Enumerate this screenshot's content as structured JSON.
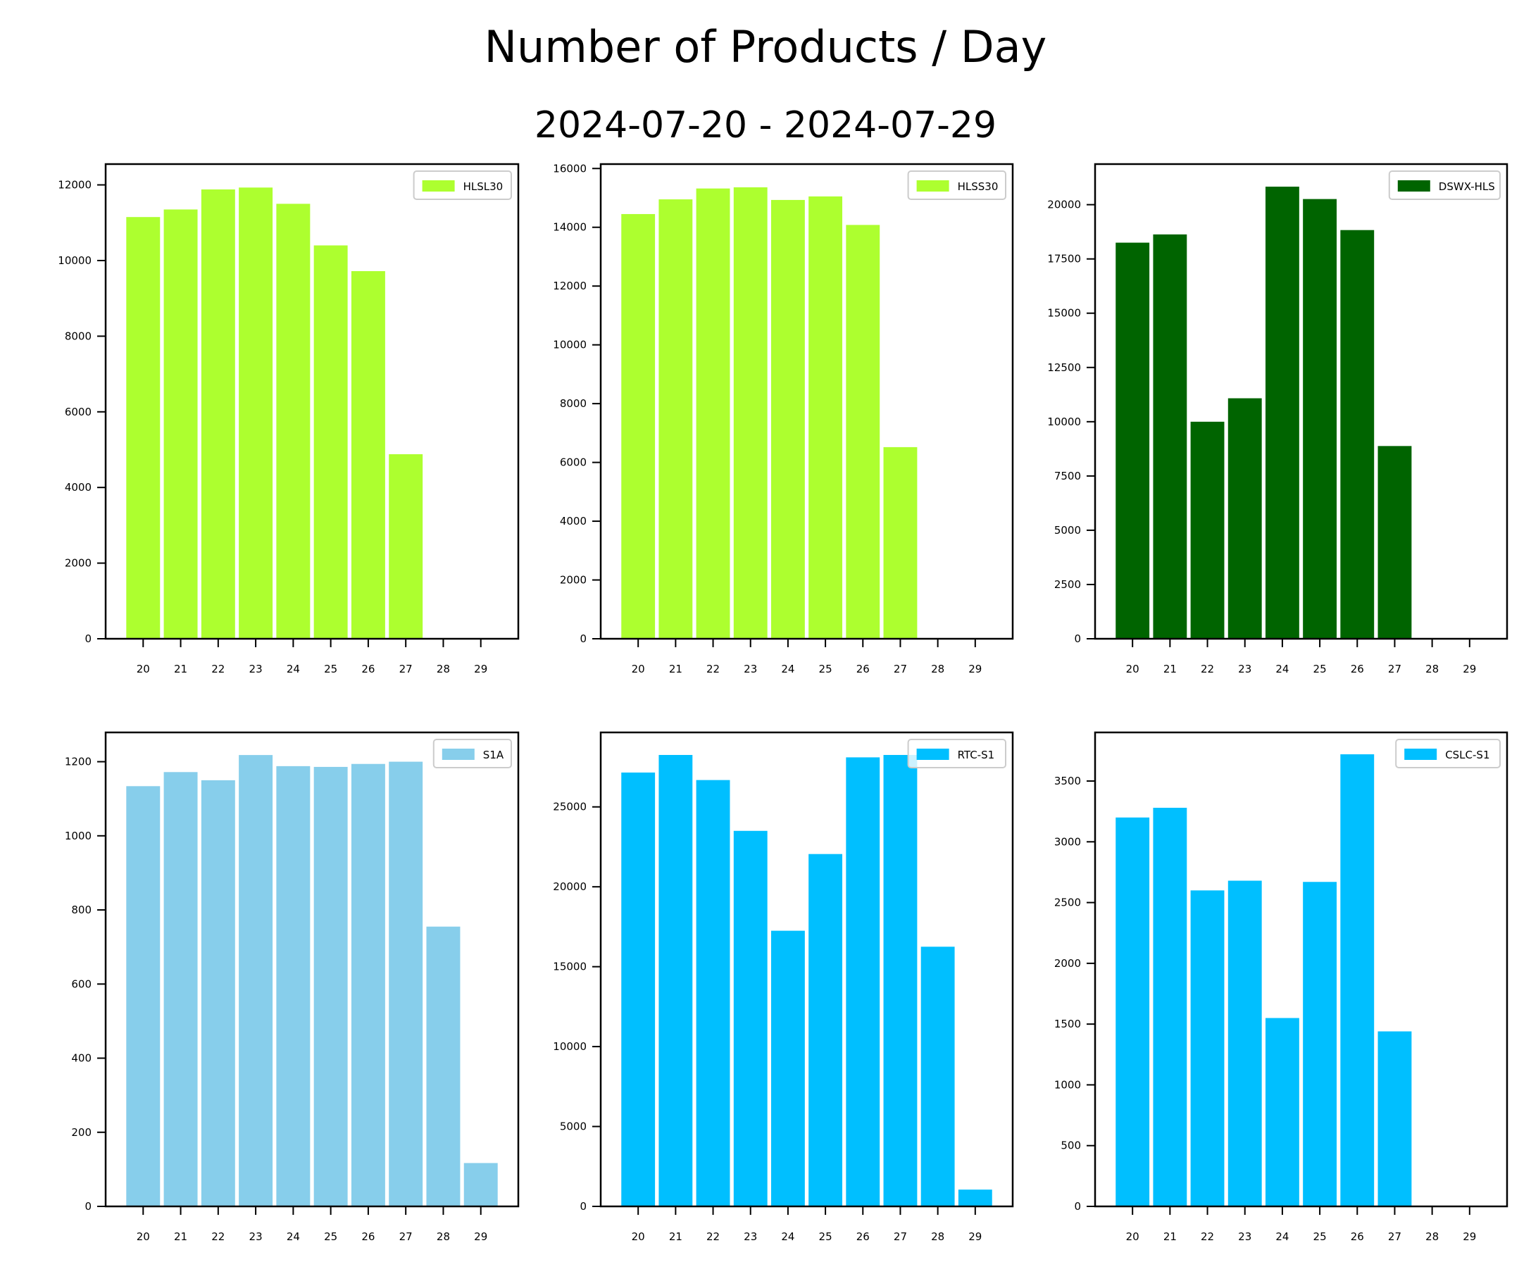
{
  "figure": {
    "title": "Number of Products / Day",
    "subtitle": "2024-07-20 - 2024-07-29"
  },
  "chart_data": [
    {
      "type": "bar",
      "series": [
        {
          "name": "HLSL30",
          "values": [
            11150,
            11350,
            11880,
            11930,
            11500,
            10400,
            9720,
            4880,
            0,
            0
          ]
        }
      ],
      "categories": [
        "20",
        "21",
        "22",
        "23",
        "24",
        "25",
        "26",
        "27",
        "28",
        "29"
      ],
      "color": "#adff2f",
      "ylim": [
        0,
        12550
      ],
      "yticks": [
        0,
        2000,
        4000,
        6000,
        8000,
        10000,
        12000
      ],
      "legend_position": "upper-right"
    },
    {
      "type": "bar",
      "series": [
        {
          "name": "HLSS30",
          "values": [
            14450,
            14950,
            15320,
            15360,
            14930,
            15050,
            14080,
            6520,
            0,
            0
          ]
        }
      ],
      "categories": [
        "20",
        "21",
        "22",
        "23",
        "24",
        "25",
        "26",
        "27",
        "28",
        "29"
      ],
      "color": "#adff2f",
      "ylim": [
        0,
        16150
      ],
      "yticks": [
        0,
        2000,
        4000,
        6000,
        8000,
        10000,
        12000,
        14000,
        16000
      ],
      "legend_position": "upper-right"
    },
    {
      "type": "bar",
      "series": [
        {
          "name": "DSWX-HLS",
          "values": [
            18250,
            18630,
            10000,
            11080,
            20830,
            20260,
            18830,
            8880,
            0,
            0
          ]
        }
      ],
      "categories": [
        "20",
        "21",
        "22",
        "23",
        "24",
        "25",
        "26",
        "27",
        "28",
        "29"
      ],
      "color": "#006400",
      "ylim": [
        0,
        21870
      ],
      "yticks": [
        0,
        2500,
        5000,
        7500,
        10000,
        12500,
        15000,
        17500,
        20000
      ],
      "legend_position": "upper-right"
    },
    {
      "type": "bar",
      "series": [
        {
          "name": "S1A",
          "values": [
            1134,
            1172,
            1150,
            1218,
            1188,
            1186,
            1194,
            1200,
            755,
            117
          ]
        }
      ],
      "categories": [
        "20",
        "21",
        "22",
        "23",
        "24",
        "25",
        "26",
        "27",
        "28",
        "29"
      ],
      "color": "#87ceeb",
      "ylim": [
        0,
        1279
      ],
      "yticks": [
        0,
        200,
        400,
        600,
        800,
        1000,
        1200
      ],
      "legend_position": "upper-right"
    },
    {
      "type": "bar",
      "series": [
        {
          "name": "RTC-S1",
          "values": [
            27150,
            28250,
            26680,
            23500,
            17250,
            22050,
            28100,
            28250,
            16250,
            1050
          ]
        }
      ],
      "categories": [
        "20",
        "21",
        "22",
        "23",
        "24",
        "25",
        "26",
        "27",
        "28",
        "29"
      ],
      "color": "#00bfff",
      "ylim": [
        0,
        29660
      ],
      "yticks": [
        0,
        5000,
        10000,
        15000,
        20000,
        25000
      ],
      "legend_position": "upper-right"
    },
    {
      "type": "bar",
      "series": [
        {
          "name": "CSLC-S1",
          "values": [
            3200,
            3280,
            2600,
            2680,
            1550,
            2670,
            3720,
            1440,
            0,
            0
          ]
        }
      ],
      "categories": [
        "20",
        "21",
        "22",
        "23",
        "24",
        "25",
        "26",
        "27",
        "28",
        "29"
      ],
      "color": "#00bfff",
      "ylim": [
        0,
        3900
      ],
      "yticks": [
        0,
        500,
        1000,
        1500,
        2000,
        2500,
        3000,
        3500
      ],
      "legend_position": "upper-right"
    }
  ]
}
